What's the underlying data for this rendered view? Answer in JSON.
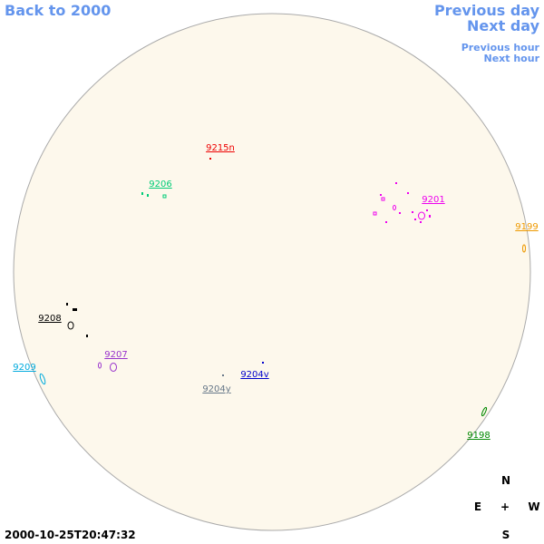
{
  "nav": {
    "back": "Back to 2000",
    "previous_day": "Previous day",
    "next_day": "Next day",
    "previous_hour": "Previous hour",
    "next_hour": "Next hour"
  },
  "regions": [
    {
      "label": "9215n",
      "color": "#ee0000"
    },
    {
      "label": "9206",
      "color": "#00cc77"
    },
    {
      "label": "9201",
      "color": "#ee00ee"
    },
    {
      "label": "9199",
      "color": "#ee9900"
    },
    {
      "label": "9208",
      "color": "#000000"
    },
    {
      "label": "9207",
      "color": "#9933cc"
    },
    {
      "label": "9209",
      "color": "#00aadd"
    },
    {
      "label": "9204v",
      "color": "#0000cc"
    },
    {
      "label": "9204y",
      "color": "#667788"
    },
    {
      "label": "9198",
      "color": "#008800"
    }
  ],
  "compass": {
    "north": "N",
    "east": "E",
    "center": "+",
    "west": "W",
    "south": "S"
  },
  "timestamp": "2000-10-25T20:47:32"
}
